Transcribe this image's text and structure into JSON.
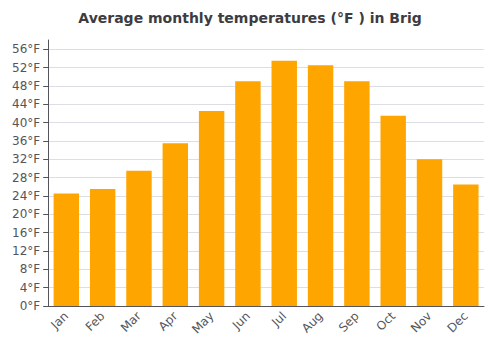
{
  "chart_data": {
    "type": "bar",
    "title": "Average monthly temperatures (°F ) in Brig",
    "categories": [
      "Jan",
      "Feb",
      "Mar",
      "Apr",
      "May",
      "Jun",
      "Jul",
      "Aug",
      "Sep",
      "Oct",
      "Nov",
      "Dec"
    ],
    "values": [
      24.5,
      25.5,
      29.5,
      35.5,
      42.5,
      49.0,
      53.5,
      52.5,
      49.0,
      41.5,
      32.0,
      26.5
    ],
    "color": "#FFA500",
    "ylim": [
      0,
      58
    ],
    "yticks": [
      {
        "value": 0,
        "label": "0°F"
      },
      {
        "value": 4,
        "label": "4°F"
      },
      {
        "value": 8,
        "label": "8°F"
      },
      {
        "value": 12,
        "label": "12°F"
      },
      {
        "value": 16,
        "label": "16°F"
      },
      {
        "value": 20,
        "label": "20°F"
      },
      {
        "value": 24,
        "label": "24°F"
      },
      {
        "value": 28,
        "label": "28°F"
      },
      {
        "value": 32,
        "label": "32°F"
      },
      {
        "value": 36,
        "label": "36°F"
      },
      {
        "value": 40,
        "label": "40°F"
      },
      {
        "value": 44,
        "label": "44°F"
      },
      {
        "value": 48,
        "label": "48°F"
      },
      {
        "value": 52,
        "label": "52°F"
      },
      {
        "value": 56,
        "label": "56°F"
      }
    ],
    "grid": true
  }
}
